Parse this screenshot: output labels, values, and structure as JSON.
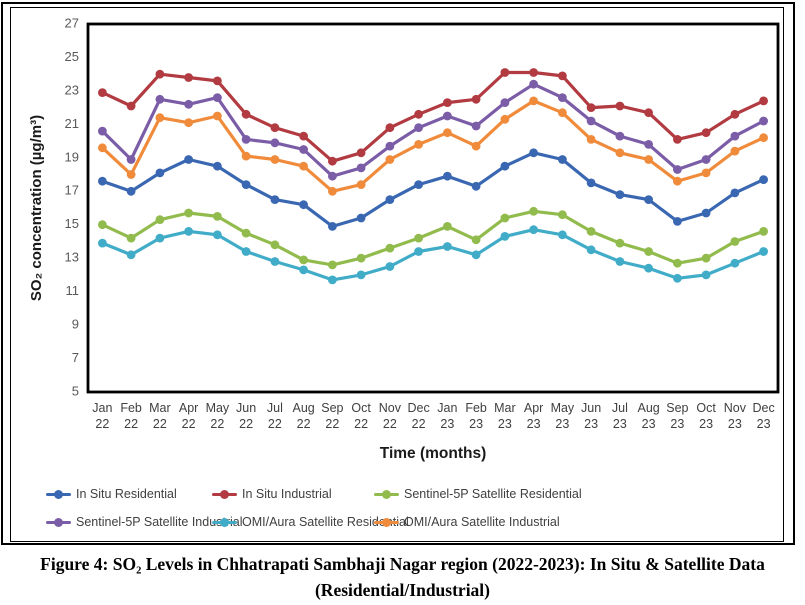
{
  "figure": {
    "caption_line1": "Figure 4: SO₂ Levels in Chhatrapati Sambhaji Nagar region (2022-2023): In Situ & Satellite Data",
    "caption_line2": "(Residential/Industrial)"
  },
  "chart_data": {
    "type": "line",
    "title": "",
    "xlabel": "Time (months)",
    "ylabel": "SO₂ concentration (µg/m³)",
    "ylim": [
      5,
      27
    ],
    "y_ticks": [
      5,
      7,
      9,
      11,
      13,
      15,
      17,
      19,
      21,
      23,
      25,
      27
    ],
    "grid": false,
    "legend_position": "bottom",
    "marker": "circle",
    "axis_color": "#000000",
    "tick_label_color": "#595959",
    "x_label_color": "#404040",
    "categories": [
      "Jan 22",
      "Feb 22",
      "Mar 22",
      "Apr 22",
      "May 22",
      "Jun 22",
      "Jul 22",
      "Aug 22",
      "Sep 22",
      "Oct 22",
      "Nov 22",
      "Dec 22",
      "Jan 23",
      "Feb 23",
      "Mar 23",
      "Apr 23",
      "May 23",
      "Jun 23",
      "Jul 23",
      "Aug 23",
      "Sep 23",
      "Oct 23",
      "Nov 23",
      "Dec 23"
    ],
    "series": [
      {
        "name": "In Situ Residential",
        "color": "#3A67B1",
        "values": [
          17.6,
          17.0,
          18.1,
          18.9,
          18.5,
          17.4,
          16.5,
          16.2,
          14.9,
          15.4,
          16.5,
          17.4,
          17.9,
          17.3,
          18.5,
          19.3,
          18.9,
          17.5,
          16.8,
          16.5,
          15.2,
          15.7,
          16.9,
          17.7
        ]
      },
      {
        "name": "In Situ Industrial",
        "color": "#B23B42",
        "values": [
          22.9,
          22.1,
          24.0,
          23.8,
          23.6,
          21.6,
          20.8,
          20.3,
          18.8,
          19.3,
          20.8,
          21.6,
          22.3,
          22.5,
          24.1,
          24.1,
          23.9,
          22.0,
          22.1,
          21.7,
          20.1,
          20.5,
          21.6,
          22.4
        ]
      },
      {
        "name": "Sentinel-5P Satellite Residential",
        "color": "#92BB4D",
        "values": [
          15.0,
          14.2,
          15.3,
          15.7,
          15.5,
          14.5,
          13.8,
          12.9,
          12.6,
          13.0,
          13.6,
          14.2,
          14.9,
          14.1,
          15.4,
          15.8,
          15.6,
          14.6,
          13.9,
          13.4,
          12.7,
          13.0,
          14.0,
          14.6
        ]
      },
      {
        "name": "Sentinel-5P Satellite Industrial",
        "color": "#7B5CA7",
        "values": [
          20.6,
          18.9,
          22.5,
          22.2,
          22.6,
          20.1,
          19.9,
          19.5,
          17.9,
          18.4,
          19.7,
          20.8,
          21.5,
          20.9,
          22.3,
          23.4,
          22.6,
          21.2,
          20.3,
          19.8,
          18.3,
          18.9,
          20.3,
          21.2
        ]
      },
      {
        "name": "OMI/Aura Satellite Residential",
        "color": "#41ACC8",
        "values": [
          13.9,
          13.2,
          14.2,
          14.6,
          14.4,
          13.4,
          12.8,
          12.3,
          11.7,
          12.0,
          12.5,
          13.4,
          13.7,
          13.2,
          14.3,
          14.7,
          14.4,
          13.5,
          12.8,
          12.4,
          11.8,
          12.0,
          12.7,
          13.4
        ]
      },
      {
        "name": "OMI/Aura Satellite Industrial",
        "color": "#F08B3B",
        "values": [
          19.6,
          18.0,
          21.4,
          21.1,
          21.5,
          19.1,
          18.9,
          18.5,
          17.0,
          17.4,
          18.9,
          19.8,
          20.5,
          19.7,
          21.3,
          22.4,
          21.7,
          20.1,
          19.3,
          18.9,
          17.6,
          18.1,
          19.4,
          20.2
        ]
      }
    ]
  }
}
